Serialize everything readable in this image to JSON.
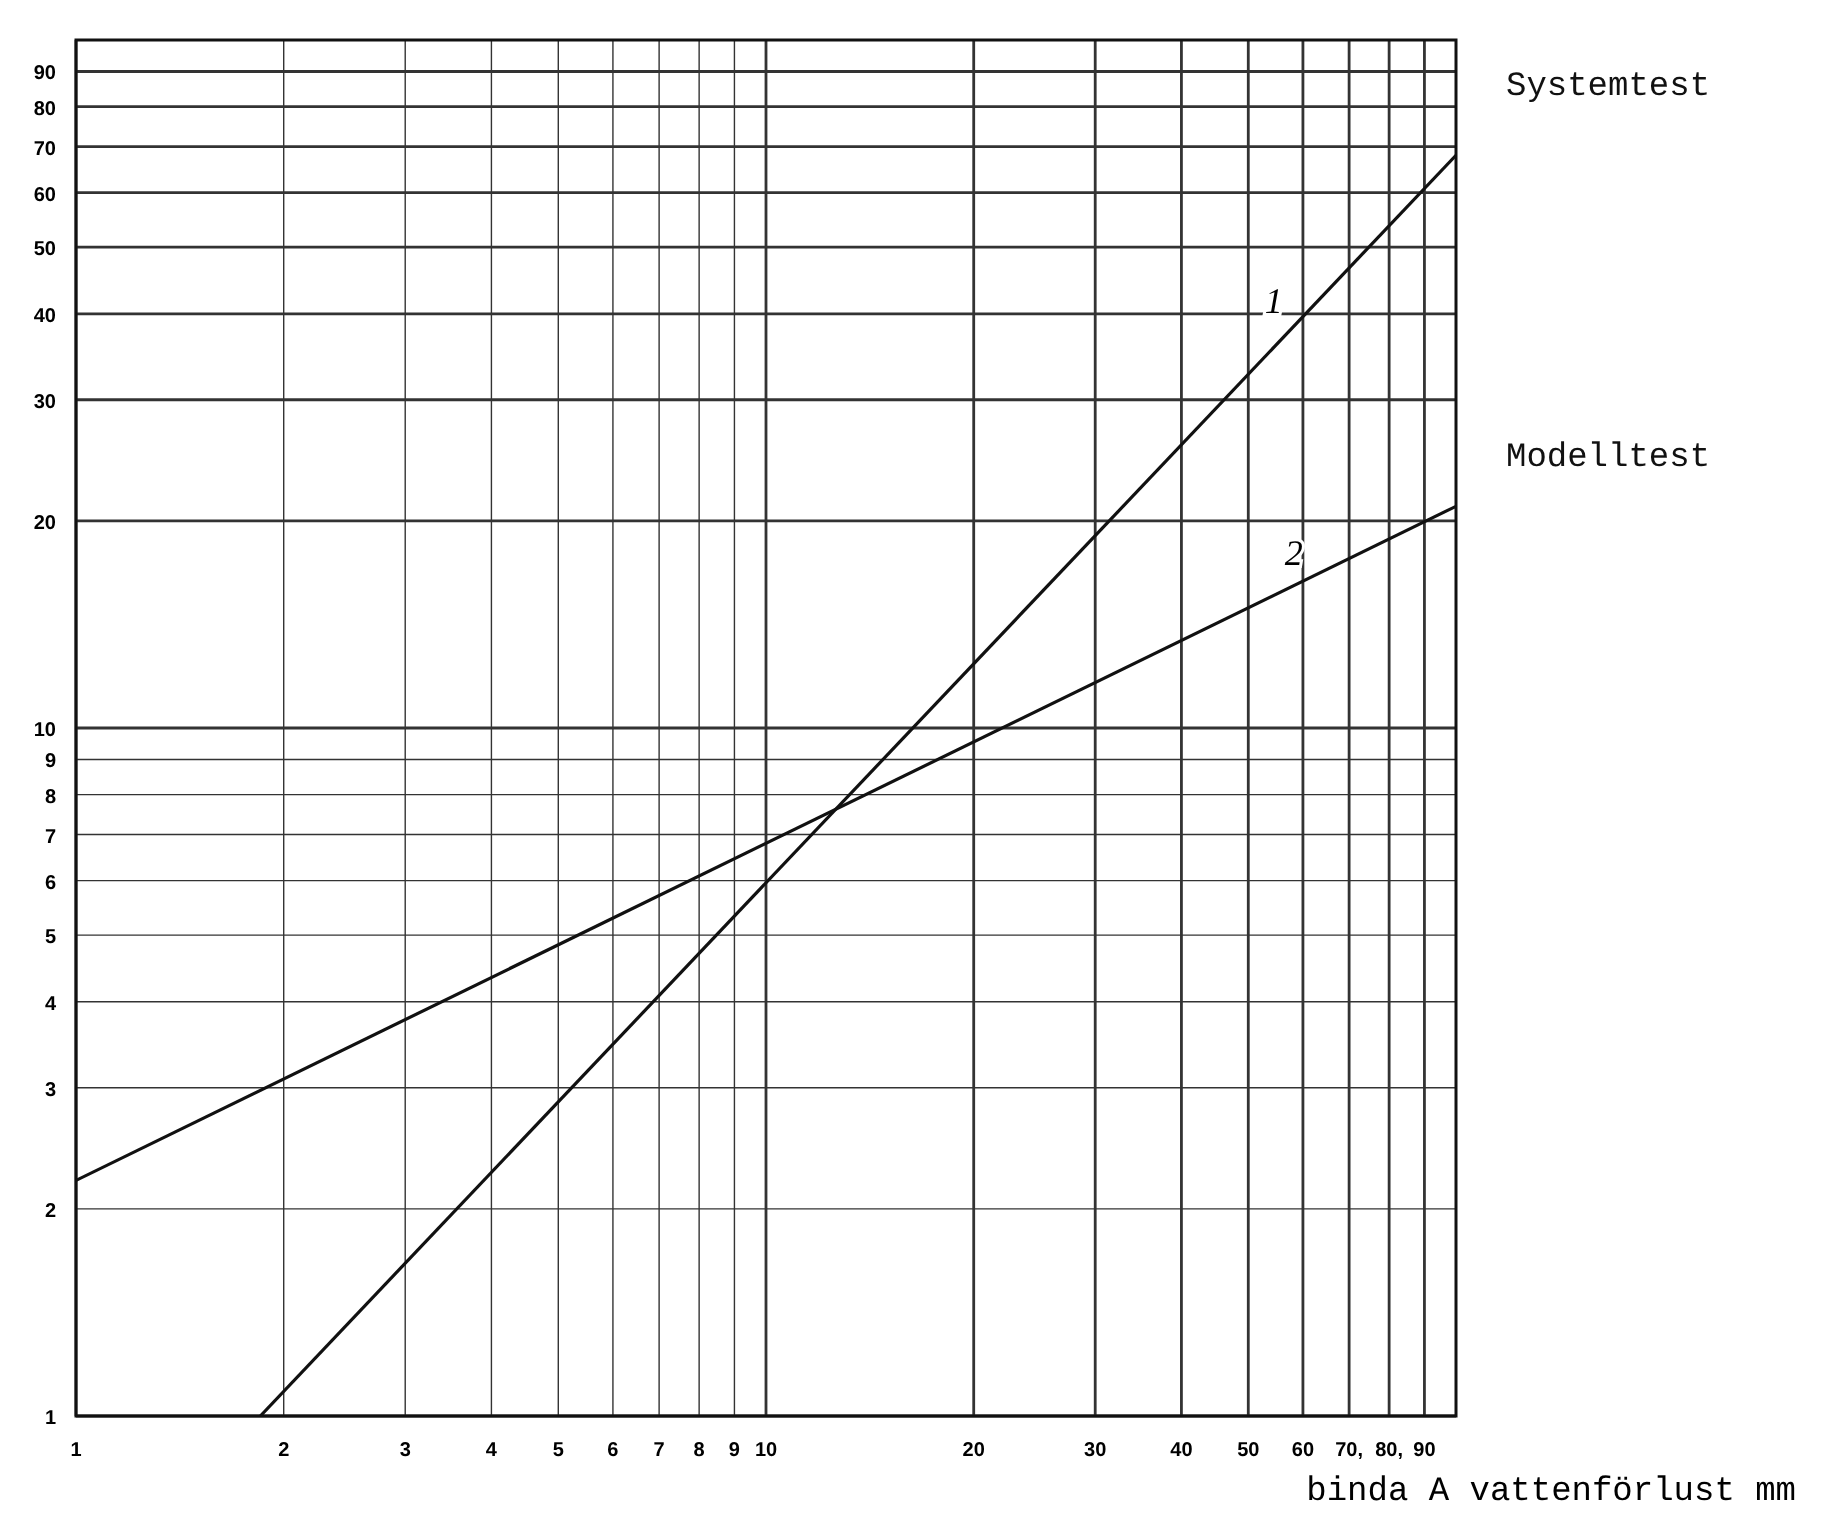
{
  "chart_data": {
    "type": "line",
    "xlabel": "binda A vattenförlust mm",
    "log": "xy",
    "xlim": [
      1,
      100
    ],
    "ylim": [
      1,
      100
    ],
    "xticks": [
      1,
      2,
      3,
      4,
      5,
      6,
      7,
      8,
      9,
      10,
      20,
      30,
      40,
      50,
      60,
      {
        "value": 70,
        "label": "70,"
      },
      {
        "value": 80,
        "label": "80,"
      },
      90
    ],
    "yticks": [
      1,
      2,
      3,
      4,
      5,
      6,
      7,
      8,
      9,
      10,
      20,
      30,
      40,
      50,
      60,
      70,
      80,
      90
    ],
    "grid": true,
    "marker": "none",
    "line_style": "solid",
    "series": [
      {
        "name": "Systemtest",
        "color": "#111111",
        "x": [
          1.85,
          100
        ],
        "values": [
          1,
          68
        ]
      },
      {
        "name": "Modelltest",
        "color": "#111111",
        "x": [
          1,
          100
        ],
        "values": [
          2.2,
          21
        ]
      }
    ],
    "annotations": [
      {
        "text": "1",
        "x": 58,
        "y": 38.5
      },
      {
        "text": "2",
        "x": 62,
        "y": 16.6
      }
    ]
  }
}
